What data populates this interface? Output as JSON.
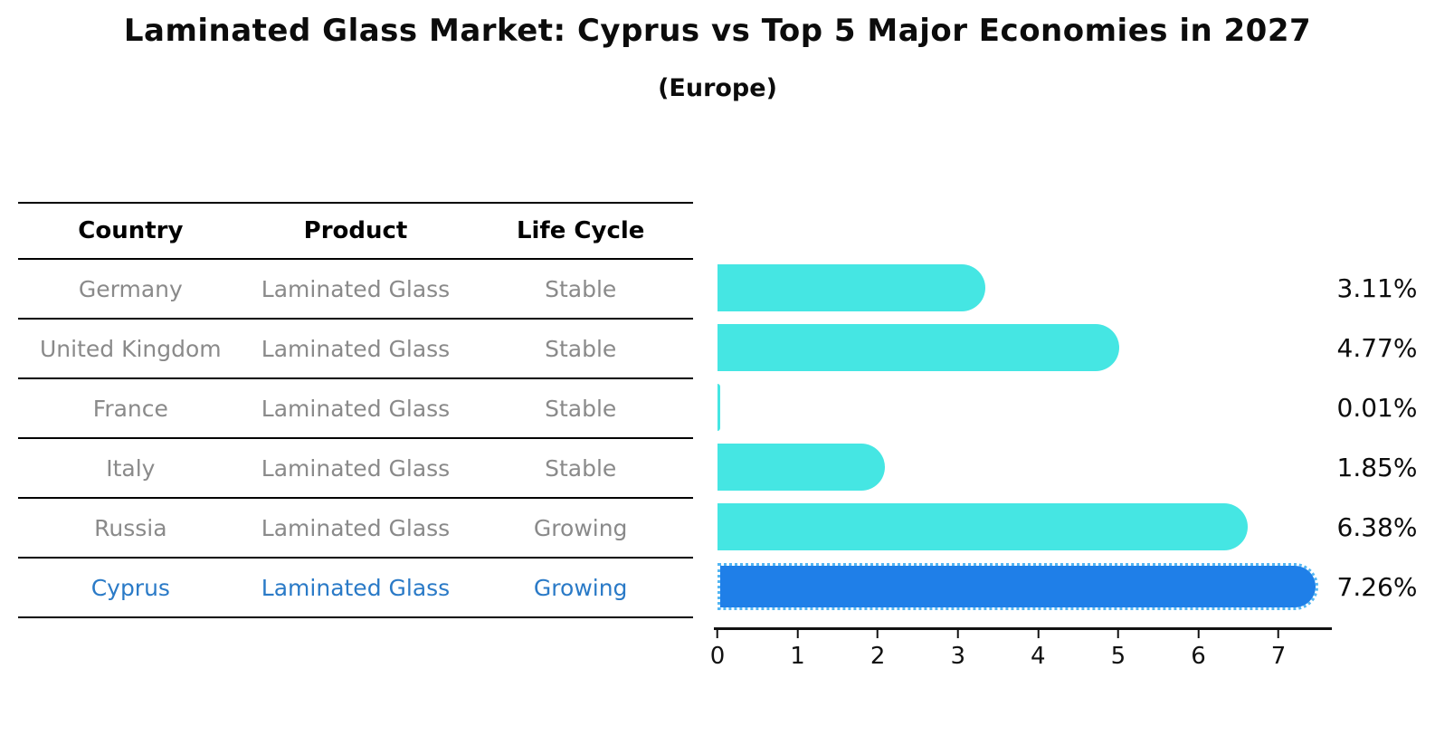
{
  "title": "Laminated Glass Market: Cyprus vs Top 5 Major Economies in 2027",
  "subtitle": "(Europe)",
  "colors": {
    "bar": "#45e6e3",
    "bar_highlight": "#1f7fe8",
    "bar_highlight_border": "#53b6f3",
    "highlight_text": "#2a7ac7",
    "muted_text": "#8a8a8a",
    "text": "#0c0c0c"
  },
  "table": {
    "headers": [
      "Country",
      "Product",
      "Life Cycle"
    ],
    "rows": [
      {
        "country": "Germany",
        "product": "Laminated Glass",
        "life_cycle": "Stable",
        "highlight": false
      },
      {
        "country": "United Kingdom",
        "product": "Laminated Glass",
        "life_cycle": "Stable",
        "highlight": false
      },
      {
        "country": "France",
        "product": "Laminated Glass",
        "life_cycle": "Stable",
        "highlight": false
      },
      {
        "country": "Italy",
        "product": "Laminated Glass",
        "life_cycle": "Stable",
        "highlight": false
      },
      {
        "country": "Russia",
        "product": "Laminated Glass",
        "life_cycle": "Growing",
        "highlight": false
      },
      {
        "country": "Cyprus",
        "product": "Laminated Glass",
        "life_cycle": "Growing",
        "highlight": true
      }
    ]
  },
  "chart_data": {
    "type": "bar",
    "orientation": "horizontal",
    "title": "Laminated Glass Market: Cyprus vs Top 5 Major Economies in 2027 (Europe)",
    "categories": [
      "Germany",
      "United Kingdom",
      "France",
      "Italy",
      "Russia",
      "Cyprus"
    ],
    "values": [
      3.11,
      4.77,
      0.01,
      1.85,
      6.38,
      7.26
    ],
    "value_labels": [
      "3.11%",
      "4.77%",
      "0.01%",
      "1.85%",
      "6.38%",
      "7.26%"
    ],
    "unit": "%",
    "xlim": [
      0,
      7.62
    ],
    "xticks": [
      0,
      1,
      2,
      3,
      4,
      5,
      6,
      7
    ],
    "highlight_index": 5,
    "grid": false,
    "legend": "none"
  }
}
